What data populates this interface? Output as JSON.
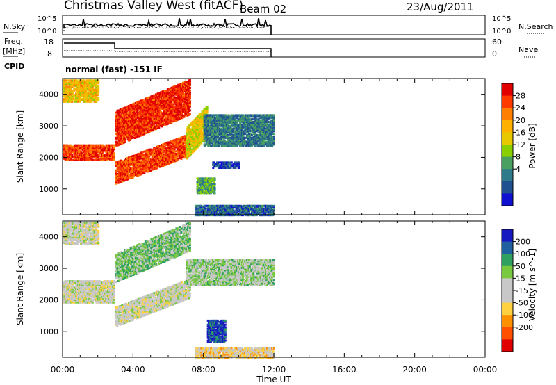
{
  "header": {
    "station": "Christmas Valley West (fitACF)",
    "beam": "Beam 02",
    "date": "23/Aug/2011"
  },
  "nsky_panel": {
    "left_label": "N.Sky",
    "left_ticks": [
      "10^5",
      "10^0"
    ],
    "right_ticks": [
      "10^5",
      "10^0"
    ],
    "right_label": "N.Search"
  },
  "freq_panel": {
    "left_label_1": "Freq.",
    "left_label_2": "[MHz]",
    "left_ticks": [
      "18",
      "8"
    ],
    "right_ticks": [
      "60",
      "0"
    ],
    "right_label": "Nave"
  },
  "cpid": {
    "label": "CPID",
    "mode": "normal (fast) -151 IF"
  },
  "axes": {
    "xlabel": "Time UT",
    "ylabel": "Slant Range [km]"
  },
  "chart_data": [
    {
      "type": "heatmap",
      "panel": "power",
      "xlabel": "Time UT",
      "ylabel": "Slant Range [km]",
      "x_ticks": [
        "00:00",
        "04:00",
        "08:00",
        "12:00",
        "16:00",
        "20:00",
        "00:00"
      ],
      "x_range_hours": [
        0,
        24
      ],
      "y_ticks": [
        1000,
        2000,
        3000,
        4000
      ],
      "ylim": [
        180,
        4500
      ],
      "colorbar": {
        "label": "Power [dB]",
        "ticks": [
          "28",
          "24",
          "20",
          "16",
          "12",
          "8",
          "4"
        ],
        "colors": [
          "#e00000",
          "#ff3a00",
          "#ff8000",
          "#ffb000",
          "#e8c800",
          "#8ad000",
          "#4aa060",
          "#2e7a8a",
          "#205090",
          "#1010d0"
        ]
      },
      "regions": [
        {
          "t0": 0.0,
          "t1": 2.9,
          "r0": 1950,
          "r1": 2450,
          "level": 0.85
        },
        {
          "t0": 0.0,
          "t1": 2.0,
          "r0": 3800,
          "r1": 4500,
          "level": 0.6
        },
        {
          "t0": 3.0,
          "t1": 7.2,
          "r0": 2400,
          "r1": 3500,
          "level": 0.9,
          "rise": 1000
        },
        {
          "t0": 3.0,
          "t1": 7.2,
          "r0": 1200,
          "r1": 1900,
          "level": 0.85,
          "rise": 900
        },
        {
          "t0": 7.0,
          "t1": 8.2,
          "r0": 2000,
          "r1": 3000,
          "level": 0.55,
          "rise": 700
        },
        {
          "t0": 8.0,
          "t1": 12.0,
          "r0": 2400,
          "r1": 3400,
          "level": 0.25
        },
        {
          "t0": 8.5,
          "t1": 10.0,
          "r0": 1700,
          "r1": 1900,
          "level": 0.15
        },
        {
          "t0": 7.6,
          "t1": 8.6,
          "r0": 900,
          "r1": 1400,
          "level": 0.35
        },
        {
          "t0": 7.5,
          "t1": 12.0,
          "r0": 200,
          "r1": 500,
          "level": 0.2
        }
      ]
    },
    {
      "type": "heatmap",
      "panel": "velocity",
      "xlabel": "Time UT",
      "ylabel": "Slant Range [km]",
      "x_ticks": [
        "00:00",
        "04:00",
        "08:00",
        "12:00",
        "16:00",
        "20:00",
        "00:00"
      ],
      "x_range_hours": [
        0,
        24
      ],
      "y_ticks": [
        1000,
        2000,
        3000,
        4000
      ],
      "ylim": [
        180,
        4500
      ],
      "colorbar": {
        "label": "Velocity [m s^-1]",
        "ticks": [
          "200",
          "100",
          "50",
          "15",
          "-15",
          "-50",
          "-100",
          "-200"
        ],
        "colors": [
          "#1818c0",
          "#2060a0",
          "#30a060",
          "#78c840",
          "#c8c8c8",
          "#c8c8c8",
          "#ffd040",
          "#ff9000",
          "#ff5000",
          "#e00000"
        ]
      },
      "regions": [
        {
          "t0": 0.0,
          "t1": 2.9,
          "r0": 1950,
          "r1": 2650,
          "level": 0.5
        },
        {
          "t0": 0.0,
          "t1": 2.0,
          "r0": 3800,
          "r1": 4500,
          "level": 0.5
        },
        {
          "t0": 3.0,
          "t1": 7.2,
          "r0": 2600,
          "r1": 3500,
          "level": 0.65,
          "rise": 1000
        },
        {
          "t0": 3.0,
          "t1": 7.2,
          "r0": 1200,
          "r1": 1800,
          "level": 0.5,
          "rise": 900
        },
        {
          "t0": 7.0,
          "t1": 12.0,
          "r0": 2500,
          "r1": 3300,
          "level": 0.6
        },
        {
          "t0": 8.2,
          "t1": 9.2,
          "r0": 700,
          "r1": 1400,
          "level": 0.9
        },
        {
          "t0": 7.5,
          "t1": 12.0,
          "r0": 200,
          "r1": 500,
          "level": 0.4
        }
      ]
    }
  ]
}
